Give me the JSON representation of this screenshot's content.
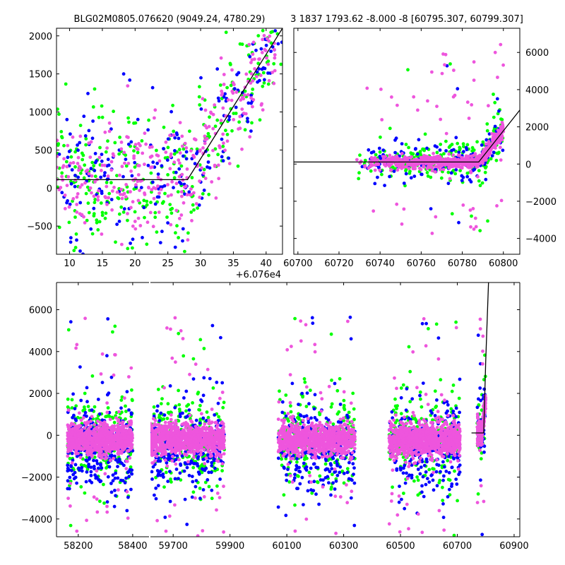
{
  "chart_data": [
    {
      "panel": "top-left",
      "type": "scatter",
      "title": "BLG02M0805.076620 (9049.24, 4780.29)",
      "x_offset_label": "+6.076e4",
      "xlim": [
        8,
        42.5
      ],
      "ylim": [
        -870,
        2100
      ],
      "xticks": [
        10,
        15,
        20,
        25,
        30,
        35,
        40
      ],
      "xtick_labels": [
        "10",
        "15",
        "20",
        "25",
        "30",
        "35",
        "40"
      ],
      "yticks": [
        -500,
        0,
        500,
        1000,
        1500,
        2000
      ],
      "ytick_labels": [
        "−500",
        "0",
        "500",
        "1000",
        "1500",
        "2000"
      ],
      "series_names": [
        "green",
        "blue",
        "magenta"
      ],
      "colors": {
        "green": "#00ff00",
        "blue": "#0000ff",
        "magenta": "#ee55dd"
      },
      "model": {
        "x": [
          8,
          28,
          42.5
        ],
        "y": [
          110,
          110,
          2100
        ]
      },
      "point_model": {
        "base": 110,
        "t0": 28,
        "slope": 137,
        "spread": [
          [
            8,
            450
          ],
          [
            28,
            430
          ],
          [
            42.5,
            330
          ]
        ],
        "seed": 11,
        "counts": {
          "green": 300,
          "blue": 210,
          "magenta": 330
        }
      }
    },
    {
      "panel": "top-right",
      "type": "scatter",
      "title": "3 1837 1793.62 -8.000 -8 [60795.307, 60799.307]",
      "xlim": [
        60698,
        60808
      ],
      "ylim": [
        -4850,
        7300
      ],
      "xticks": [
        60700,
        60720,
        60740,
        60760,
        60780,
        60800
      ],
      "xtick_labels": [
        "60700",
        "60720",
        "60740",
        "60760",
        "60780",
        "60800"
      ],
      "yticks": [
        -4000,
        -2000,
        0,
        2000,
        4000,
        6000
      ],
      "ytick_labels": [
        "−4000",
        "−2000",
        "0",
        "2000",
        "4000",
        "6000"
      ],
      "series_names": [
        "green",
        "blue",
        "magenta"
      ],
      "colors": {
        "green": "#00ff00",
        "blue": "#0000ff",
        "magenta": "#ee55dd"
      },
      "model": {
        "x": [
          60698,
          60788,
          60808
        ],
        "y": [
          110,
          110,
          2900
        ]
      },
      "point_model": {
        "base": 110,
        "t0": 60788,
        "slope": 140,
        "xmin": 60728,
        "xmax": 60800,
        "spread": [
          [
            60728,
            500
          ],
          [
            60788,
            450
          ],
          [
            60800,
            700
          ]
        ],
        "seed": 23,
        "counts": {
          "green": 260,
          "blue": 160,
          "magenta": 700
        }
      }
    },
    {
      "panel": "bottom",
      "type": "scatter",
      "xlim_segments": [
        [
          58120,
          58460
        ],
        [
          59620,
          60920
        ]
      ],
      "ylim": [
        -4850,
        7300
      ],
      "xticks": [
        58200,
        58400,
        59700,
        59900,
        60100,
        60300,
        60500,
        60700,
        60900
      ],
      "xtick_labels": [
        "58200",
        "58400",
        "59700",
        "59900",
        "60100",
        "60300",
        "60500",
        "60700",
        "60900"
      ],
      "yticks": [
        -4000,
        -2000,
        0,
        2000,
        4000,
        6000
      ],
      "ytick_labels": [
        "−4000",
        "−2000",
        "0",
        "2000",
        "4000",
        "6000"
      ],
      "series_names": [
        "green",
        "blue",
        "magenta"
      ],
      "colors": {
        "green": "#00ff00",
        "blue": "#0000ff",
        "magenta": "#ee55dd"
      },
      "seasons": [
        [
          58160,
          58400
        ],
        [
          59620,
          59880
        ],
        [
          60070,
          60340
        ],
        [
          60460,
          60710
        ],
        [
          60770,
          60800
        ]
      ],
      "model": {
        "x": [
          60750,
          60793,
          60800,
          60810
        ],
        "y": [
          110,
          110,
          3500,
          7300
        ]
      },
      "point_model": {
        "base": -200,
        "spread": 1100,
        "seed": 37,
        "counts_per_season": {
          "green": 230,
          "blue": 260,
          "magenta": 900
        }
      }
    }
  ]
}
